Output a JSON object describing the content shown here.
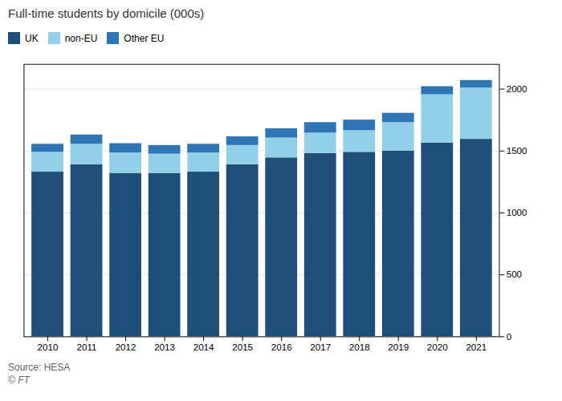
{
  "chart_data": {
    "type": "bar",
    "stacked": true,
    "title": "Full-time students by domicile (000s)",
    "annotations": [
      "Source: HESA",
      "© FT"
    ],
    "categories": [
      "2010",
      "2011",
      "2012",
      "2013",
      "2014",
      "2015",
      "2016",
      "2017",
      "2018",
      "2019",
      "2020",
      "2021"
    ],
    "series": [
      {
        "name": "UK",
        "color": "#1f4e79",
        "values": [
          1330,
          1390,
          1320,
          1320,
          1330,
          1390,
          1445,
          1480,
          1490,
          1500,
          1565,
          1595
        ]
      },
      {
        "name": "non-EU",
        "color": "#92d0e8",
        "values": [
          160,
          165,
          165,
          155,
          155,
          155,
          160,
          165,
          175,
          230,
          390,
          415
        ]
      },
      {
        "name": "Other EU",
        "color": "#2e75b6",
        "values": [
          65,
          75,
          75,
          70,
          70,
          70,
          75,
          85,
          85,
          75,
          65,
          60
        ]
      }
    ],
    "ylim": [
      0,
      2200
    ],
    "yticks": [
      0,
      500,
      1000,
      1500,
      2000
    ],
    "grid": true,
    "legend": "upper left"
  }
}
